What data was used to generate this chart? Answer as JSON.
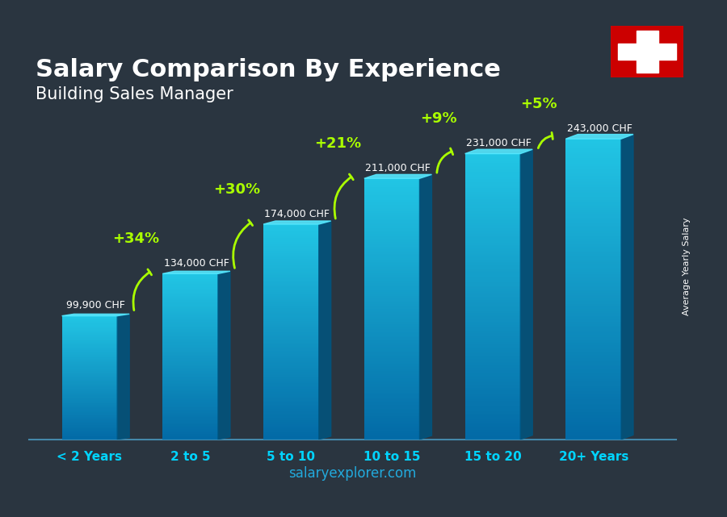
{
  "title": "Salary Comparison By Experience",
  "subtitle": "Building Sales Manager",
  "categories": [
    "< 2 Years",
    "2 to 5",
    "5 to 10",
    "10 to 15",
    "15 to 20",
    "20+ Years"
  ],
  "values": [
    99900,
    134000,
    174000,
    211000,
    231000,
    243000
  ],
  "value_labels": [
    "99,900 CHF",
    "134,000 CHF",
    "174,000 CHF",
    "211,000 CHF",
    "231,000 CHF",
    "243,000 CHF"
  ],
  "pct_labels": [
    "+34%",
    "+30%",
    "+21%",
    "+9%",
    "+5%"
  ],
  "bar_color_top": "#00d4ff",
  "bar_color_bottom": "#007ab8",
  "bar_color_side": "#005a8e",
  "background_color": "#1a2a3a",
  "title_color": "#ffffff",
  "subtitle_color": "#ffffff",
  "value_label_color": "#ffffff",
  "pct_label_color": "#aaff00",
  "xlabel_color": "#00d4ff",
  "watermark": "salaryexplorer.com",
  "ylabel_text": "Average Yearly Salary",
  "flag_bg": "#cc0000",
  "ylim_max": 280000
}
